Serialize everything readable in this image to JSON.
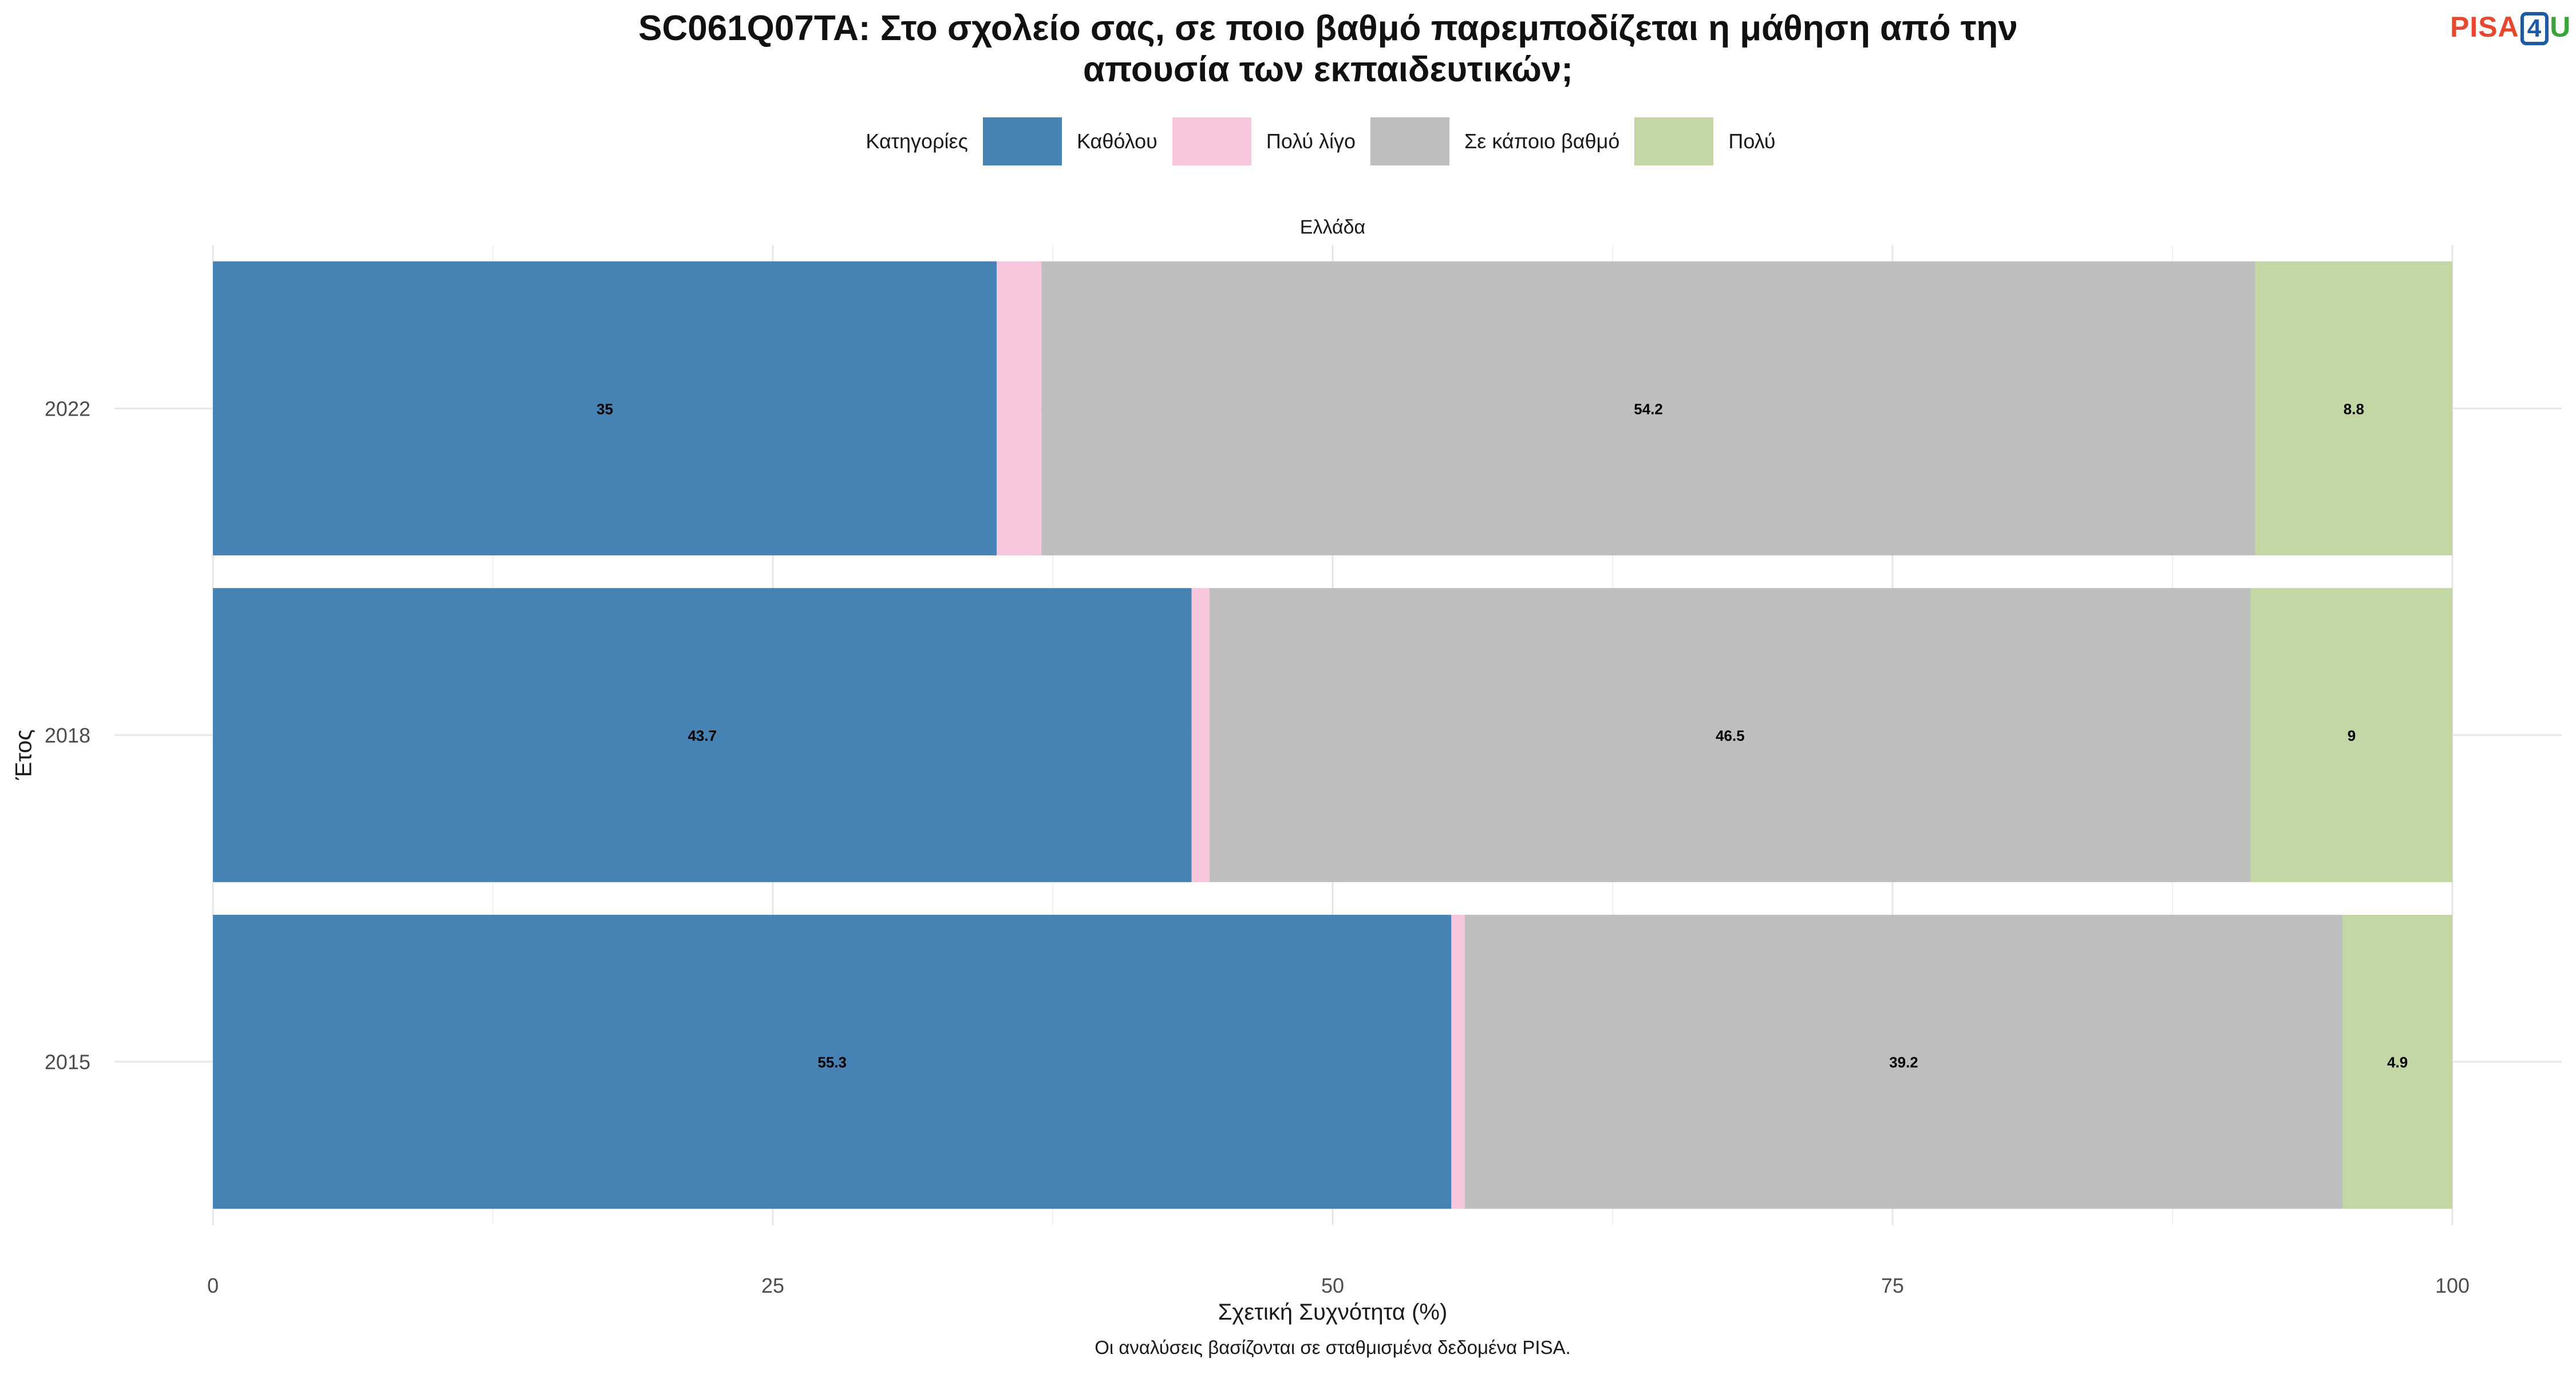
{
  "title_line1": "SC061Q07TA: Στο σχολείο σας, σε ποιο βαθμό παρεμποδίζεται η μάθηση από την",
  "title_line2": "απουσία των εκπαιδευτικών;",
  "logo": {
    "part1": "PISA",
    "part2": "4",
    "part3": "U"
  },
  "legend": {
    "title": "Κατηγορίες",
    "items": [
      {
        "label": "Καθόλου",
        "color": "#4682b4"
      },
      {
        "label": "Πολύ λίγο",
        "color": "#f7c6dc"
      },
      {
        "label": "Σε κάποιο βαθμό",
        "color": "#bebebe"
      },
      {
        "label": "Πολύ",
        "color": "#c3d7a4"
      }
    ]
  },
  "facet_label": "Ελλάδα",
  "caption": "Οι αναλύσεις βασίζονται σε σταθμισμένα δεδομένα PISA.",
  "chart_data": {
    "type": "bar",
    "orientation": "horizontal",
    "stacked": true,
    "xlabel": "Σχετική Συχνότητα (%)",
    "ylabel": "Έτος",
    "xlim": [
      0,
      100
    ],
    "xticks": [
      0,
      25,
      50,
      75,
      100
    ],
    "categories": [
      "2022",
      "2018",
      "2015"
    ],
    "series": [
      {
        "name": "Καθόλου",
        "color": "#4682b4",
        "values": [
          35.0,
          43.7,
          55.3
        ],
        "labels": [
          "35",
          "43.7",
          "55.3"
        ]
      },
      {
        "name": "Πολύ λίγο",
        "color": "#f7c6dc",
        "values": [
          2.0,
          0.8,
          0.6
        ],
        "labels": [
          "",
          "",
          ""
        ]
      },
      {
        "name": "Σε κάποιο βαθμό",
        "color": "#bebebe",
        "values": [
          54.2,
          46.5,
          39.2
        ],
        "labels": [
          "54.2",
          "46.5",
          "39.2"
        ]
      },
      {
        "name": "Πολύ",
        "color": "#c3d7a4",
        "values": [
          8.8,
          9.0,
          4.9
        ],
        "labels": [
          "8.8",
          "9",
          "4.9"
        ]
      }
    ],
    "grid": true,
    "legend_position": "top"
  }
}
